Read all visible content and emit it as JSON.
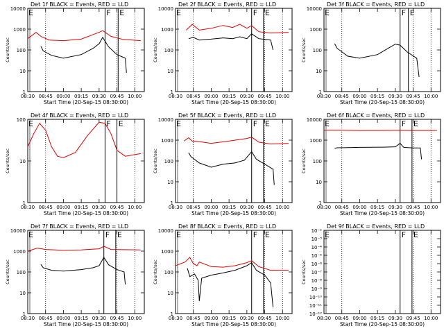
{
  "chart_data": [
    {
      "type": "line",
      "title": "Det 1f BLACK = Events, RED = LLD",
      "xlabel": "Start Time (20-Sep-15 08:30:00)",
      "ylabel": "Counts/sec",
      "x_ticks": [
        "08:30",
        "08:45",
        "09:00",
        "09:15",
        "09:30",
        "09:45",
        "10:00"
      ],
      "y_ticks": [
        "1",
        "10",
        "100",
        "1000",
        "10000"
      ],
      "y_scale": "log",
      "ylim": [
        1,
        10000
      ],
      "markers": [
        {
          "label": "F",
          "x": "09:35"
        },
        {
          "label": "E",
          "x": "09:46"
        }
      ],
      "series": [
        {
          "color": "#000000",
          "x": [
            "08:41",
            "08:43",
            "08:50",
            "09:00",
            "09:15",
            "09:25",
            "09:30",
            "09:33",
            "09:38",
            "09:45",
            "09:52",
            "09:53"
          ],
          "y": [
            150,
            90,
            55,
            40,
            60,
            120,
            200,
            400,
            140,
            60,
            40,
            8
          ]
        },
        {
          "color": "#dd0000",
          "x": [
            "08:30",
            "08:37",
            "08:41",
            "08:48",
            "09:00",
            "09:15",
            "09:25",
            "09:30",
            "09:33",
            "09:40",
            "09:50",
            "10:05"
          ],
          "y": [
            350,
            700,
            450,
            300,
            280,
            330,
            550,
            700,
            850,
            450,
            320,
            280
          ]
        }
      ]
    },
    {
      "type": "line",
      "title": "Det 2f BLACK = Events, RED = LLD",
      "xlabel": "Start Time (20-Sep-15 08:30:00)",
      "ylabel": "Counts/sec",
      "x_ticks": [
        "08:30",
        "08:45",
        "09:00",
        "09:15",
        "09:30",
        "09:45",
        "10:00"
      ],
      "y_ticks": [
        "1",
        "10",
        "100",
        "1000",
        "10000"
      ],
      "y_scale": "log",
      "ylim": [
        1,
        10000
      ],
      "markers": [
        {
          "label": "F",
          "x": "09:34"
        },
        {
          "label": "E",
          "x": "09:44"
        }
      ],
      "series": [
        {
          "color": "#000000",
          "x": [
            "08:41",
            "08:45",
            "08:50",
            "09:00",
            "09:10",
            "09:18",
            "09:24",
            "09:30",
            "09:34",
            "09:40",
            "09:50",
            "09:52"
          ],
          "y": [
            350,
            400,
            300,
            330,
            380,
            350,
            430,
            350,
            600,
            350,
            300,
            100
          ]
        },
        {
          "color": "#dd0000",
          "x": [
            "08:39",
            "08:44",
            "08:50",
            "09:00",
            "09:10",
            "09:18",
            "09:24",
            "09:30",
            "09:34",
            "09:40",
            "09:50",
            "10:05"
          ],
          "y": [
            900,
            1700,
            900,
            1100,
            1500,
            1200,
            1700,
            1100,
            1500,
            750,
            650,
            700
          ]
        }
      ]
    },
    {
      "type": "line",
      "title": "Det 3f BLACK = Events, RED = LLD",
      "xlabel": "Start Time (20-Sep-15 08:30:00)",
      "ylabel": "Counts/sec",
      "x_ticks": [
        "08:30",
        "08:45",
        "09:00",
        "09:15",
        "09:30",
        "09:45",
        "10:00"
      ],
      "y_ticks": [
        "1",
        "10",
        "100",
        "1000",
        "10000"
      ],
      "y_scale": "log",
      "ylim": [
        1,
        10000
      ],
      "markers": [
        {
          "label": "F",
          "x": "09:34"
        },
        {
          "label": "E",
          "x": "09:41"
        }
      ],
      "series": [
        {
          "color": "#000000",
          "x": [
            "08:39",
            "08:41",
            "08:50",
            "09:00",
            "09:15",
            "09:25",
            "09:30",
            "09:34",
            "09:40",
            "09:48",
            "09:50"
          ],
          "y": [
            200,
            120,
            50,
            40,
            60,
            130,
            190,
            170,
            80,
            40,
            5
          ]
        }
      ]
    },
    {
      "type": "line",
      "title": "Det 4f BLACK = Events, RED = LLD",
      "xlabel": "Start Time (20-Sep-15 08:30:00)",
      "ylabel": "Counts/sec",
      "x_ticks": [
        "08:30",
        "08:45",
        "09:00",
        "09:15",
        "09:30",
        "09:45",
        "10:00"
      ],
      "y_ticks": [
        "1",
        "10",
        "100"
      ],
      "y_scale": "log",
      "ylim": [
        1,
        100
      ],
      "markers": [
        {
          "label": "F",
          "x": "09:35"
        },
        {
          "label": "E",
          "x": "09:45"
        }
      ],
      "series": [
        {
          "color": "#dd0000",
          "x": [
            "08:30",
            "08:35",
            "08:40",
            "08:45",
            "08:50",
            "08:55",
            "09:00",
            "09:10",
            "09:20",
            "09:30",
            "09:35",
            "09:40",
            "09:45",
            "09:52",
            "10:05"
          ],
          "y": [
            22,
            45,
            80,
            55,
            22,
            13,
            12,
            16,
            40,
            85,
            80,
            45,
            18,
            13,
            15
          ]
        }
      ]
    },
    {
      "type": "line",
      "title": "Det 5f BLACK = Events, RED = LLD",
      "xlabel": "Start Time (20-Sep-15 08:30:00)",
      "ylabel": "Counts/sec",
      "x_ticks": [
        "08:30",
        "08:45",
        "09:00",
        "09:15",
        "09:30",
        "09:45",
        "10:00"
      ],
      "y_ticks": [
        "1",
        "10",
        "100",
        "1000",
        "10000"
      ],
      "y_scale": "log",
      "ylim": [
        1,
        10000
      ],
      "markers": [
        {
          "label": "F",
          "x": "09:34"
        },
        {
          "label": "E",
          "x": "09:44"
        }
      ],
      "series": [
        {
          "color": "#000000",
          "x": [
            "08:41",
            "08:43",
            "08:50",
            "09:00",
            "09:10",
            "09:20",
            "09:28",
            "09:34",
            "09:38",
            "09:45",
            "09:52",
            "09:53"
          ],
          "y": [
            250,
            160,
            80,
            50,
            70,
            80,
            110,
            280,
            120,
            70,
            40,
            7
          ]
        },
        {
          "color": "#dd0000",
          "x": [
            "08:37",
            "08:41",
            "08:44",
            "08:50",
            "09:00",
            "09:15",
            "09:25",
            "09:30",
            "09:34",
            "09:40",
            "09:50",
            "10:05"
          ],
          "y": [
            900,
            1300,
            900,
            850,
            700,
            900,
            1100,
            1200,
            1400,
            800,
            650,
            700
          ]
        }
      ]
    },
    {
      "type": "line",
      "title": "Det 6f BLACK = Events, RED = LLD",
      "xlabel": "Start Time (20-Sep-15 08:30:00)",
      "ylabel": "Counts/sec",
      "x_ticks": [
        "08:30",
        "08:45",
        "09:00",
        "09:15",
        "09:30",
        "09:45",
        "10:00"
      ],
      "y_ticks": [
        "1",
        "10",
        "100",
        "1000",
        "10000"
      ],
      "y_scale": "log",
      "ylim": [
        1,
        10000
      ],
      "markers": [
        {
          "label": "F",
          "x": "09:34"
        },
        {
          "label": "E",
          "x": "09:44"
        }
      ],
      "series": [
        {
          "color": "#000000",
          "x": [
            "08:39",
            "08:41",
            "09:00",
            "09:20",
            "09:30",
            "09:34",
            "09:37",
            "09:45",
            "09:51",
            "09:52"
          ],
          "y": [
            400,
            430,
            450,
            460,
            480,
            700,
            450,
            420,
            420,
            120
          ]
        },
        {
          "color": "#dd0000",
          "x": [
            "08:30",
            "08:45",
            "09:00",
            "09:15",
            "09:30",
            "09:45",
            "10:05"
          ],
          "y": [
            3000,
            3000,
            2900,
            2900,
            2950,
            2900,
            2900
          ]
        }
      ]
    },
    {
      "type": "line",
      "title": "Det 7f BLACK = Events, RED = LLD",
      "xlabel": "Start Time (20-Sep-15 08:30:00)",
      "ylabel": "Counts/sec",
      "x_ticks": [
        "08:30",
        "08:45",
        "09:00",
        "09:15",
        "09:30",
        "09:45",
        "10:00"
      ],
      "y_ticks": [
        "1",
        "10",
        "100",
        "1000",
        "10000"
      ],
      "y_scale": "log",
      "ylim": [
        1,
        10000
      ],
      "markers": [
        {
          "label": "F",
          "x": "09:34"
        },
        {
          "label": "E",
          "x": "09:44"
        }
      ],
      "series": [
        {
          "color": "#000000",
          "x": [
            "08:41",
            "08:43",
            "08:50",
            "09:00",
            "09:15",
            "09:25",
            "09:30",
            "09:34",
            "09:38",
            "09:45",
            "09:51",
            "09:52"
          ],
          "y": [
            230,
            160,
            120,
            110,
            130,
            160,
            200,
            500,
            220,
            130,
            100,
            25
          ]
        },
        {
          "color": "#dd0000",
          "x": [
            "08:30",
            "08:38",
            "08:45",
            "09:00",
            "09:15",
            "09:30",
            "09:34",
            "09:40",
            "10:05"
          ],
          "y": [
            1000,
            1400,
            1200,
            1100,
            1150,
            1300,
            1700,
            1200,
            1150
          ]
        }
      ]
    },
    {
      "type": "line",
      "title": "Det 8f BLACK = Events, RED = LLD",
      "xlabel": "Start Time (20-Sep-15 08:30:00)",
      "ylabel": "Counts/sec",
      "x_ticks": [
        "08:30",
        "08:45",
        "09:00",
        "09:15",
        "09:30",
        "09:45",
        "10:00"
      ],
      "y_ticks": [
        "1",
        "10",
        "100",
        "1000",
        "10000"
      ],
      "y_scale": "log",
      "ylim": [
        1,
        10000
      ],
      "markers": [
        {
          "label": "F",
          "x": "09:34"
        },
        {
          "label": "E",
          "x": "09:44"
        }
      ],
      "series": [
        {
          "color": "#000000",
          "x": [
            "08:40",
            "08:42",
            "08:46",
            "08:49",
            "08:50",
            "08:52",
            "09:00",
            "09:10",
            "09:20",
            "09:30",
            "09:34",
            "09:38",
            "09:45",
            "09:50",
            "09:52"
          ],
          "y": [
            150,
            60,
            80,
            40,
            4,
            50,
            70,
            90,
            120,
            200,
            280,
            120,
            70,
            30,
            2
          ]
        },
        {
          "color": "#dd0000",
          "x": [
            "08:30",
            "08:38",
            "08:42",
            "08:45",
            "08:48",
            "08:50",
            "09:00",
            "09:10",
            "09:20",
            "09:30",
            "09:34",
            "09:40",
            "09:50",
            "10:05"
          ],
          "y": [
            200,
            300,
            500,
            250,
            200,
            300,
            180,
            170,
            200,
            280,
            350,
            180,
            120,
            120
          ]
        }
      ]
    },
    {
      "type": "line",
      "title": "Det 9f BLACK = Events, RED = LLD",
      "xlabel": "Start Time (20-Sep-15 08:30:00)",
      "ylabel": "Counts/sec",
      "x_ticks": [
        "08:30",
        "08:45",
        "09:00",
        "09:15",
        "09:30",
        "09:45",
        "10:00"
      ],
      "y_ticks": [
        "10⁻¹²",
        "10⁻¹¹",
        "10⁻¹⁰",
        "10⁻⁹",
        "10⁻⁸",
        "10⁻⁷",
        "10⁻⁶",
        "10⁻⁵",
        "10⁻⁴",
        "10⁻³",
        "10⁻²"
      ],
      "y_scale": "log",
      "ylim": [
        1e-12,
        0.01
      ],
      "markers": [
        {
          "label": "F",
          "x": "09:34"
        },
        {
          "label": "E",
          "x": "09:44"
        }
      ],
      "series": []
    }
  ]
}
